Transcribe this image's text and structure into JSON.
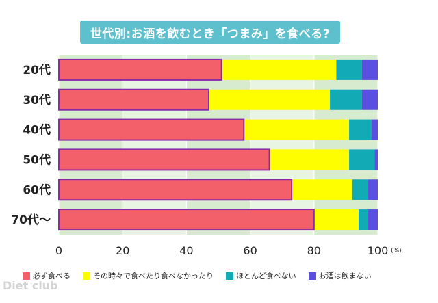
{
  "title": "世代別:お酒を飲むとき「つまみ」を食べる?",
  "watermark": "Diet club",
  "colors": {
    "plot_bg": "#d7ebcf",
    "plot_bg_alt": "#e9f5e3",
    "bar_border": "#8a2aa6",
    "series": [
      "#f4606a",
      "#fefe00",
      "#12aab4",
      "#5a4fe0"
    ]
  },
  "chart_data": {
    "type": "bar",
    "orientation": "horizontal",
    "stacked": true,
    "title": "世代別:お酒を飲むとき「つまみ」を食べる?",
    "categories": [
      "20代",
      "30代",
      "40代",
      "50代",
      "60代",
      "70代〜"
    ],
    "series": [
      {
        "name": "必ず食べる",
        "values": [
          51,
          47,
          58,
          66,
          73,
          80
        ]
      },
      {
        "name": "その時々で食べたり食べなかったり",
        "values": [
          36,
          38,
          33,
          25,
          19,
          14
        ]
      },
      {
        "name": "ほとんど食べない",
        "values": [
          8,
          10,
          7,
          8,
          5,
          3
        ]
      },
      {
        "name": "お酒は飲まない",
        "values": [
          5,
          5,
          2,
          1,
          3,
          3
        ]
      }
    ],
    "xlim": [
      0,
      100
    ],
    "xticks": [
      0,
      20,
      40,
      60,
      80,
      100
    ],
    "xtick_labels": [
      "0",
      "20",
      "40",
      "60",
      "80",
      "100"
    ],
    "x_unit": "(%)",
    "grid": true,
    "legend_position": "bottom"
  }
}
